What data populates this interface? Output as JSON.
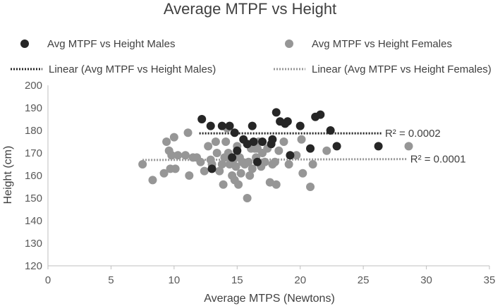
{
  "chart_data": {
    "type": "scatter",
    "title": "Average MTPF vs Height",
    "xlabel": "Average MTPS (Newtons)",
    "ylabel": "Height (cm)",
    "xlim": [
      0,
      35
    ],
    "ylim": [
      120,
      200
    ],
    "xticks": [
      "0",
      "5",
      "10",
      "15",
      "20",
      "25",
      "30",
      "35"
    ],
    "yticks": [
      "120",
      "130",
      "140",
      "150",
      "160",
      "170",
      "180",
      "190",
      "200"
    ],
    "legend_position": "top",
    "grid": false,
    "series": [
      {
        "name": "Avg MTPF vs Height Males",
        "color": "#262626",
        "points": [
          [
            12.2,
            185
          ],
          [
            12.9,
            182
          ],
          [
            13.8,
            182
          ],
          [
            14.4,
            182
          ],
          [
            14.8,
            179
          ],
          [
            15.8,
            174
          ],
          [
            16.2,
            182
          ],
          [
            16.3,
            175
          ],
          [
            17.0,
            175
          ],
          [
            17.7,
            174
          ],
          [
            17.8,
            176
          ],
          [
            18.1,
            188
          ],
          [
            18.4,
            184
          ],
          [
            18.8,
            183
          ],
          [
            19.0,
            184
          ],
          [
            19.2,
            169
          ],
          [
            20.0,
            182
          ],
          [
            20.8,
            172
          ],
          [
            21.2,
            186
          ],
          [
            21.6,
            187
          ],
          [
            22.4,
            180
          ],
          [
            22.9,
            173
          ],
          [
            26.2,
            173
          ],
          [
            15.0,
            171
          ],
          [
            13.0,
            163
          ],
          [
            14.6,
            168
          ],
          [
            15.5,
            176
          ],
          [
            16.6,
            166
          ]
        ]
      },
      {
        "name": "Avg MTPF vs Height Females",
        "color": "#969696",
        "points": [
          [
            7.5,
            165
          ],
          [
            8.3,
            158
          ],
          [
            9.2,
            161
          ],
          [
            9.4,
            175
          ],
          [
            9.6,
            171
          ],
          [
            9.7,
            163
          ],
          [
            9.8,
            169
          ],
          [
            10.0,
            177
          ],
          [
            10.1,
            163
          ],
          [
            10.3,
            169
          ],
          [
            10.9,
            169
          ],
          [
            11.1,
            179
          ],
          [
            11.2,
            160
          ],
          [
            11.5,
            168
          ],
          [
            11.8,
            168
          ],
          [
            12.1,
            166
          ],
          [
            12.4,
            162
          ],
          [
            12.7,
            173
          ],
          [
            12.9,
            167
          ],
          [
            13.0,
            165
          ],
          [
            13.3,
            175
          ],
          [
            13.4,
            170
          ],
          [
            13.6,
            162
          ],
          [
            13.8,
            165
          ],
          [
            13.9,
            156
          ],
          [
            14.0,
            168
          ],
          [
            14.1,
            175
          ],
          [
            14.2,
            181
          ],
          [
            14.3,
            170
          ],
          [
            14.4,
            165
          ],
          [
            14.6,
            160
          ],
          [
            14.7,
            167
          ],
          [
            14.8,
            158
          ],
          [
            14.9,
            164
          ],
          [
            15.0,
            173
          ],
          [
            15.1,
            156
          ],
          [
            15.2,
            168
          ],
          [
            15.3,
            161
          ],
          [
            15.4,
            166
          ],
          [
            15.6,
            165
          ],
          [
            15.8,
            150
          ],
          [
            15.9,
            166
          ],
          [
            16.0,
            160
          ],
          [
            16.1,
            172
          ],
          [
            16.2,
            163
          ],
          [
            16.4,
            172
          ],
          [
            16.5,
            168
          ],
          [
            16.6,
            172
          ],
          [
            16.7,
            175
          ],
          [
            16.9,
            164
          ],
          [
            17.0,
            170
          ],
          [
            17.2,
            166
          ],
          [
            17.4,
            172
          ],
          [
            17.6,
            157
          ],
          [
            17.8,
            165
          ],
          [
            18.0,
            166
          ],
          [
            18.1,
            156
          ],
          [
            18.3,
            171
          ],
          [
            18.7,
            175
          ],
          [
            19.1,
            165
          ],
          [
            19.7,
            169
          ],
          [
            20.1,
            176
          ],
          [
            20.2,
            161
          ],
          [
            20.8,
            155
          ],
          [
            21.0,
            165
          ],
          [
            22.1,
            171
          ],
          [
            28.6,
            173
          ]
        ]
      }
    ],
    "trendlines": [
      {
        "name": "Linear (Avg MTPF vs Height Males)",
        "color": "#262626",
        "x": [
          12,
          26.5
        ],
        "y": [
          178.7,
          178.7
        ],
        "r2_label": "R² = 0.0002"
      },
      {
        "name": "Linear (Avg MTPF vs Height Females)",
        "color": "#969696",
        "x": [
          7.5,
          28.5
        ],
        "y": [
          166.9,
          167.3
        ],
        "r2_label": "R² = 0.0001"
      }
    ]
  }
}
